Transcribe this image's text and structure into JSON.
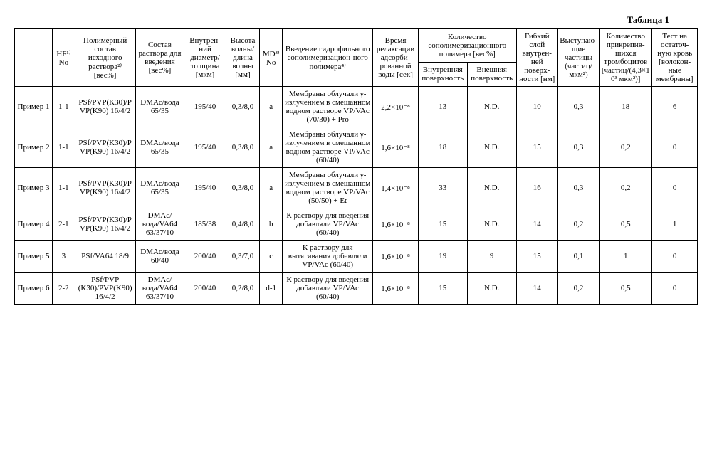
{
  "title": "Таблица 1",
  "headers": {
    "row_label": "",
    "hf_no": "HF¹⁾ No",
    "polymer_comp": "Полимерный состав исходного раствора²⁾ [вес%]",
    "solution_comp": "Состав раствора для введения [вес%]",
    "inner_diam": "Внутрен-ний диаметр/толщина [мкм]",
    "wave": "Высота волны/длина волны [мм]",
    "md_no": "MD³⁾ No",
    "hydro_intro": "Введение гидрофильного сополимеризацион-ного полимера⁴⁾",
    "relax_time": "Время релаксации адсорби-рованной воды [сек]",
    "copoly_amount": "Количество сополимеризационного полимера [вес%]",
    "copoly_inner": "Внутренняя поверхность",
    "copoly_outer": "Внешняя поверхность",
    "flex_layer": "Гибкий слой внутрен-ней поверх-ности [нм]",
    "protruding": "Выступаю-щие частицы (частиц/мкм²)",
    "platelets": "Количество прикрепив-шихся тромбоцитов [частиц/(4,3×10³ мкм²)]",
    "blood_test": "Тест на остаточ-ную кровь [волокон-ные мембраны]"
  },
  "rows": [
    {
      "label": "Пример 1",
      "hf_no": "1-1",
      "polymer_comp": "PSf/PVP(K30)/PVP(K90) 16/4/2",
      "solution_comp": "DMAc/вода 65/35",
      "inner_diam": "195/40",
      "wave": "0,3/8,0",
      "md_no": "a",
      "hydro_intro": "Мембраны облучали γ-излучением в смешанном водном растворе VP/VAc (70/30) + Pro",
      "relax_time": "2,2×10⁻⁸",
      "copoly_inner": "13",
      "copoly_outer": "N.D.",
      "flex_layer": "10",
      "protruding": "0,3",
      "platelets": "18",
      "blood_test": "6"
    },
    {
      "label": "Пример 2",
      "hf_no": "1-1",
      "polymer_comp": "PSf/PVP(K30)/PVP(K90) 16/4/2",
      "solution_comp": "DMAc/вода 65/35",
      "inner_diam": "195/40",
      "wave": "0,3/8,0",
      "md_no": "a",
      "hydro_intro": "Мембраны облучали γ-излучением в смешанном водном растворе VP/VAc (60/40)",
      "relax_time": "1,6×10⁻⁸",
      "copoly_inner": "18",
      "copoly_outer": "N.D.",
      "flex_layer": "15",
      "protruding": "0,3",
      "platelets": "0,2",
      "blood_test": "0"
    },
    {
      "label": "Пример 3",
      "hf_no": "1-1",
      "polymer_comp": "PSf/PVP(K30)/PVP(K90) 16/4/2",
      "solution_comp": "DMAc/вода 65/35",
      "inner_diam": "195/40",
      "wave": "0,3/8,0",
      "md_no": "a",
      "hydro_intro": "Мембраны облучали γ-излучением в смешанном водном растворе VP/VAc (50/50) + Et",
      "relax_time": "1,4×10⁻⁸",
      "copoly_inner": "33",
      "copoly_outer": "N.D.",
      "flex_layer": "16",
      "protruding": "0,3",
      "platelets": "0,2",
      "blood_test": "0"
    },
    {
      "label": "Пример 4",
      "hf_no": "2-1",
      "polymer_comp": "PSf/PVP(K30)/PVP(K90) 16/4/2",
      "solution_comp": "DMAc/вода/VA64 63/37/10",
      "inner_diam": "185/38",
      "wave": "0,4/8,0",
      "md_no": "b",
      "hydro_intro": "К раствору для введения добавляли VP/VAc (60/40)",
      "relax_time": "1,6×10⁻⁸",
      "copoly_inner": "15",
      "copoly_outer": "N.D.",
      "flex_layer": "14",
      "protruding": "0,2",
      "platelets": "0,5",
      "blood_test": "1"
    },
    {
      "label": "Пример 5",
      "hf_no": "3",
      "polymer_comp": "PSf/VA64 18/9",
      "solution_comp": "DMAc/вода 60/40",
      "inner_diam": "200/40",
      "wave": "0,3/7,0",
      "md_no": "c",
      "hydro_intro": "К раствору для вытягивания добавляли VP/VAc (60/40)",
      "relax_time": "1,6×10⁻⁸",
      "copoly_inner": "19",
      "copoly_outer": "9",
      "flex_layer": "15",
      "protruding": "0,1",
      "platelets": "1",
      "blood_test": "0"
    },
    {
      "label": "Пример 6",
      "hf_no": "2-2",
      "polymer_comp": "PSf/PVP (K30)/PVP(K90) 16/4/2",
      "solution_comp": "DMAc/вода/VA64 63/37/10",
      "inner_diam": "200/40",
      "wave": "0,2/8,0",
      "md_no": "d-1",
      "hydro_intro": "К раствору для введения добавляли VP/VAc (60/40)",
      "relax_time": "1,6×10⁻⁸",
      "copoly_inner": "15",
      "copoly_outer": "N.D.",
      "flex_layer": "14",
      "protruding": "0,2",
      "platelets": "0,5",
      "blood_test": "0"
    }
  ],
  "col_widths": {
    "label": 50,
    "hf_no": 30,
    "polymer_comp": 80,
    "solution_comp": 65,
    "inner_diam": 55,
    "wave": 45,
    "md_no": 30,
    "hydro_intro": 120,
    "relax_time": 60,
    "copoly_inner": 65,
    "copoly_outer": 65,
    "flex_layer": 55,
    "protruding": 55,
    "platelets": 70,
    "blood_test": 60
  }
}
